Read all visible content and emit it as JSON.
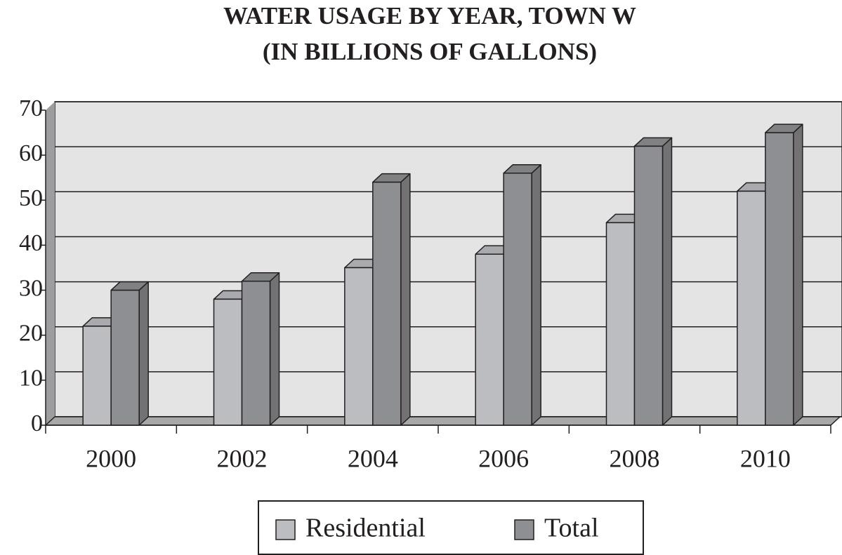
{
  "chart_data": {
    "type": "bar3d",
    "title": "WATER USAGE BY YEAR, TOWN W",
    "subtitle": "(IN BILLIONS OF GALLONS)",
    "categories": [
      "2000",
      "2002",
      "2004",
      "2006",
      "2008",
      "2010"
    ],
    "series": [
      {
        "name": "Residential",
        "color": "#bcbdc0",
        "values": [
          22,
          28,
          35,
          38,
          45,
          52
        ]
      },
      {
        "name": "Total",
        "color": "#8e8f92",
        "values": [
          30,
          32,
          54,
          56,
          62,
          65
        ]
      }
    ],
    "ylim": [
      0,
      70
    ],
    "yticks": [
      0,
      10,
      20,
      30,
      40,
      50,
      60,
      70
    ],
    "grid": true,
    "legend": "bottom"
  }
}
